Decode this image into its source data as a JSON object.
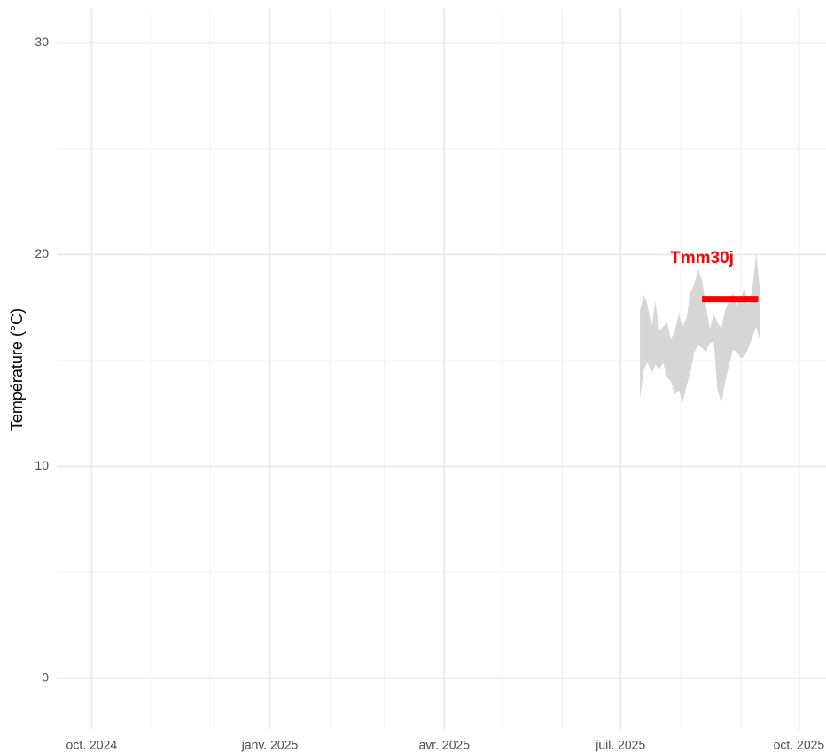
{
  "chart_data": {
    "type": "ribbon",
    "ylabel": "Température (°C)",
    "x": [
      "2025-07-11",
      "2025-07-13",
      "2025-07-15",
      "2025-07-17",
      "2025-07-19",
      "2025-07-21",
      "2025-07-23",
      "2025-07-25",
      "2025-07-27",
      "2025-07-29",
      "2025-07-31",
      "2025-08-02",
      "2025-08-04",
      "2025-08-06",
      "2025-08-08",
      "2025-08-10",
      "2025-08-12",
      "2025-08-14",
      "2025-08-16",
      "2025-08-18",
      "2025-08-20",
      "2025-08-22",
      "2025-08-24",
      "2025-08-26",
      "2025-08-28",
      "2025-08-30",
      "2025-09-01",
      "2025-09-03",
      "2025-09-05",
      "2025-09-07",
      "2025-09-09",
      "2025-09-11"
    ],
    "ymax": [
      17.4,
      18.1,
      17.6,
      16.6,
      17.8,
      16.4,
      16.6,
      16.8,
      16.0,
      16.4,
      17.2,
      16.6,
      17.0,
      18.2,
      18.6,
      19.3,
      18.8,
      17.6,
      16.5,
      17.2,
      16.8,
      16.5,
      17.4,
      17.8,
      18.2,
      17.6,
      18.0,
      18.4,
      17.6,
      18.4,
      20.1,
      18.2
    ],
    "ymin": [
      13.2,
      14.6,
      14.9,
      14.4,
      14.8,
      14.6,
      14.9,
      14.2,
      14.0,
      13.4,
      13.6,
      13.0,
      13.8,
      14.4,
      15.4,
      15.7,
      15.6,
      15.4,
      15.8,
      15.9,
      13.6,
      13.0,
      14.0,
      14.8,
      15.5,
      15.4,
      15.1,
      15.2,
      15.6,
      16.1,
      16.6,
      15.9
    ],
    "color": "#d6d6d6",
    "segment": {
      "x": [
        "2025-08-12",
        "2025-09-10"
      ],
      "y": 17.9,
      "color": "#ff0000"
    },
    "annotation": {
      "text": "Tmm30j",
      "x": "2025-08-12",
      "y": 19.8,
      "color": "#ff0000"
    },
    "xlim": [
      "2024-09-13",
      "2025-10-15"
    ],
    "xticks": [
      {
        "value": "2024-10-01",
        "label": "oct. 2024"
      },
      {
        "value": "2025-01-01",
        "label": "janv. 2025"
      },
      {
        "value": "2025-04-01",
        "label": "avr. 2025"
      },
      {
        "value": "2025-07-01",
        "label": "juil. 2025"
      },
      {
        "value": "2025-10-01",
        "label": "oct. 2025"
      }
    ],
    "xminorticks": [
      "2024-11-01",
      "2024-12-01",
      "2025-02-01",
      "2025-03-01",
      "2025-05-01",
      "2025-06-01",
      "2025-08-01",
      "2025-09-01"
    ],
    "ylim": [
      -2.4,
      31.6
    ],
    "yticks": [
      0,
      10,
      20,
      30
    ],
    "yminorticks": [
      5,
      15,
      25
    ],
    "grid": true
  }
}
